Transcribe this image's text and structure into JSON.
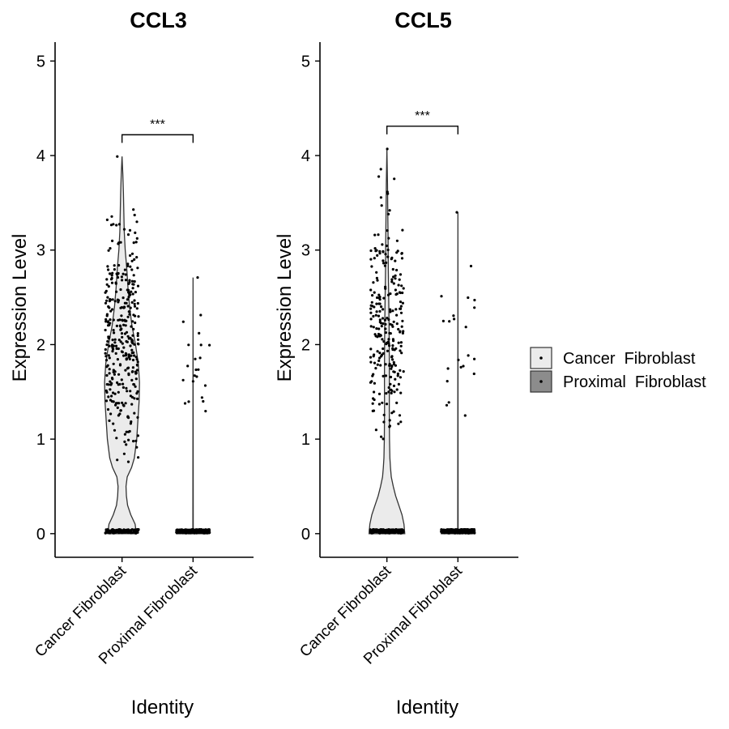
{
  "chart_data": [
    {
      "type": "violin",
      "title": "CCL3",
      "xlabel": "Identity",
      "ylabel": "Expression Level",
      "ylim": [
        -0.25,
        5.2
      ],
      "yticks": [
        0,
        1,
        2,
        3,
        4,
        5
      ],
      "categories": [
        "Cancer  Fibroblast",
        "Proximal  Fibroblast"
      ],
      "colors": [
        "#ebebeb",
        "#8c8c8c"
      ],
      "significance": {
        "label": "***",
        "y": 4.22
      },
      "violins": [
        {
          "category": "Cancer  Fibroblast",
          "max": 3.99,
          "profile": [
            [
              0,
              0.36
            ],
            [
              0.1,
              0.33
            ],
            [
              0.2,
              0.22
            ],
            [
              0.3,
              0.14
            ],
            [
              0.4,
              0.11
            ],
            [
              0.5,
              0.1
            ],
            [
              0.6,
              0.13
            ],
            [
              0.7,
              0.24
            ],
            [
              0.8,
              0.31
            ],
            [
              0.9,
              0.34
            ],
            [
              1.0,
              0.37
            ],
            [
              1.2,
              0.4
            ],
            [
              1.4,
              0.43
            ],
            [
              1.6,
              0.44
            ],
            [
              1.8,
              0.41
            ],
            [
              2.0,
              0.34
            ],
            [
              2.2,
              0.25
            ],
            [
              2.4,
              0.19
            ],
            [
              2.6,
              0.15
            ],
            [
              2.8,
              0.12
            ],
            [
              3.0,
              0.08
            ],
            [
              3.2,
              0.055
            ],
            [
              3.4,
              0.045
            ],
            [
              3.6,
              0.035
            ],
            [
              3.8,
              0.02
            ],
            [
              3.99,
              0
            ]
          ],
          "points": {
            "zero_count": 140,
            "nonzero_count": 340,
            "nonzero_range": [
              0.5,
              3.99
            ]
          }
        },
        {
          "category": "Proximal  Fibroblast",
          "max": 2.71,
          "profile": [
            [
              0,
              0.4
            ],
            [
              0.02,
              0.4
            ],
            [
              0.03,
              0.005
            ],
            [
              2.71,
              0
            ]
          ],
          "points": {
            "zero_count": 300,
            "nonzero_count": 22,
            "nonzero_range": [
              1.05,
              2.71
            ]
          }
        }
      ]
    },
    {
      "type": "violin",
      "title": "CCL5",
      "xlabel": "Identity",
      "ylabel": "Expression Level",
      "ylim": [
        -0.25,
        5.2
      ],
      "yticks": [
        0,
        1,
        2,
        3,
        4,
        5
      ],
      "categories": [
        "Cancer  Fibroblast",
        "Proximal  Fibroblast"
      ],
      "colors": [
        "#ebebeb",
        "#8c8c8c"
      ],
      "significance": {
        "label": "***",
        "y": 4.31
      },
      "violins": [
        {
          "category": "Cancer  Fibroblast",
          "max": 4.07,
          "profile": [
            [
              0,
              0.45
            ],
            [
              0.1,
              0.43
            ],
            [
              0.2,
              0.38
            ],
            [
              0.3,
              0.3
            ],
            [
              0.4,
              0.22
            ],
            [
              0.5,
              0.16
            ],
            [
              0.6,
              0.11
            ],
            [
              0.7,
              0.09
            ],
            [
              0.8,
              0.075
            ],
            [
              1.0,
              0.065
            ],
            [
              1.3,
              0.06
            ],
            [
              1.6,
              0.062
            ],
            [
              1.9,
              0.06
            ],
            [
              2.2,
              0.055
            ],
            [
              2.5,
              0.045
            ],
            [
              2.8,
              0.035
            ],
            [
              3.1,
              0.03
            ],
            [
              3.4,
              0.022
            ],
            [
              3.7,
              0.015
            ],
            [
              4.07,
              0
            ]
          ],
          "points": {
            "zero_count": 220,
            "nonzero_count": 250,
            "nonzero_range": [
              0.9,
              4.07
            ]
          }
        },
        {
          "category": "Proximal  Fibroblast",
          "max": 3.4,
          "profile": [
            [
              0,
              0.42
            ],
            [
              0.02,
              0.42
            ],
            [
              0.03,
              0.005
            ],
            [
              3.4,
              0
            ]
          ],
          "points": {
            "zero_count": 320,
            "nonzero_count": 22,
            "nonzero_range": [
              1.0,
              3.4
            ]
          }
        }
      ]
    }
  ],
  "legend": {
    "position": "right",
    "items": [
      {
        "label": "Cancer  Fibroblast",
        "color": "#ebebeb"
      },
      {
        "label": "Proximal  Fibroblast",
        "color": "#8c8c8c"
      }
    ]
  }
}
